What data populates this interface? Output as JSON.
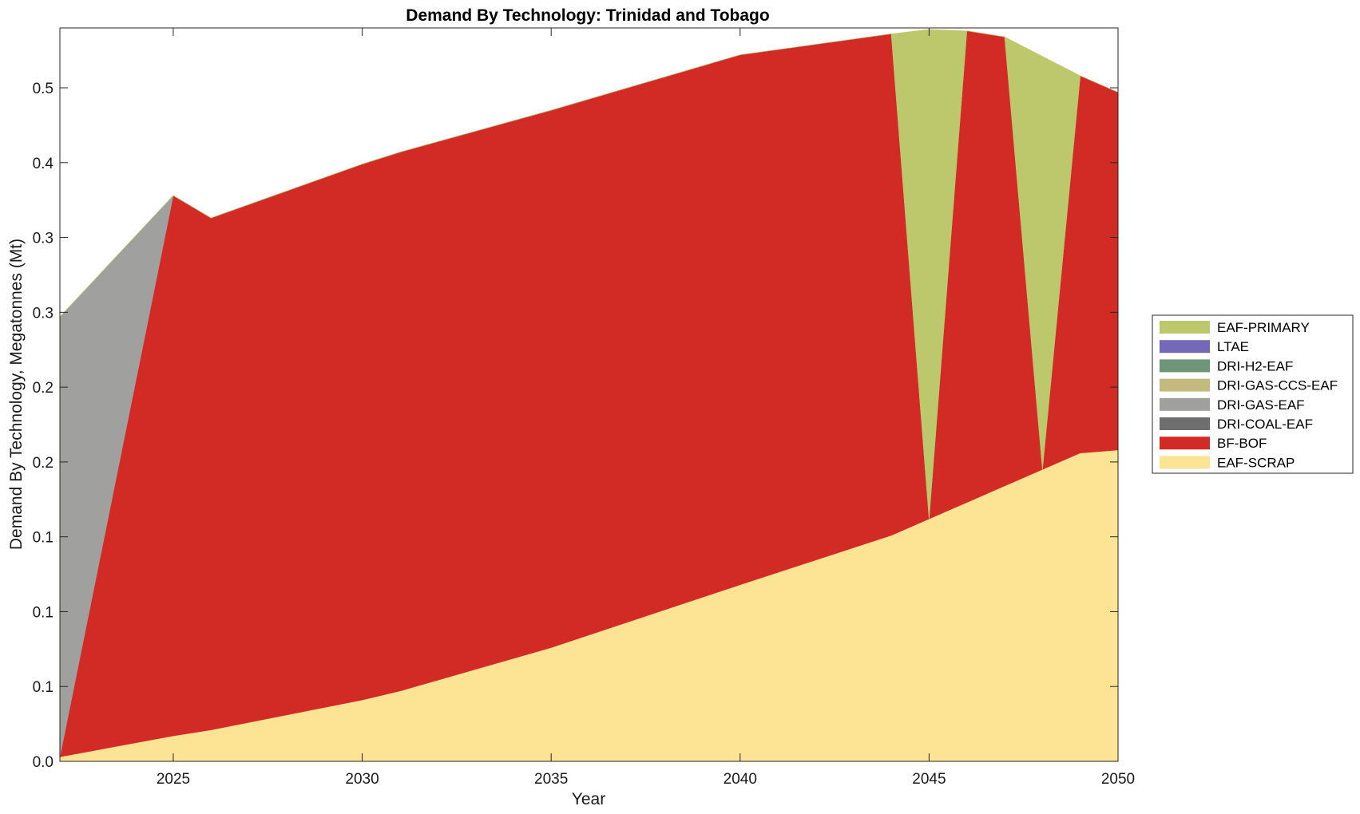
{
  "chart_data": {
    "type": "area",
    "stacked": true,
    "title": "Demand By Technology: Trinidad and Tobago",
    "xlabel": "Year",
    "ylabel": "Demand By Technology, Megatonnes (Mt)",
    "xlim": [
      2022,
      2050
    ],
    "ylim": [
      0,
      0.49
    ],
    "x_ticks": [
      2025,
      2030,
      2035,
      2040,
      2045,
      2050
    ],
    "y_ticks": [
      0,
      0.05,
      0.1,
      0.15,
      0.2,
      0.25,
      0.3,
      0.35,
      0.4,
      0.45
    ],
    "y_tick_labels": [
      "0.0",
      "0.1",
      "0.1",
      "0.1",
      "0.2",
      "0.2",
      "0.3",
      "0.3",
      "0.4",
      "0.5"
    ],
    "legend_position": "right",
    "x": [
      2022,
      2025,
      2026,
      2030,
      2031,
      2035,
      2040,
      2044,
      2045,
      2046,
      2047,
      2048,
      2049,
      2050
    ],
    "series": [
      {
        "name": "EAF-SCRAP",
        "color": "#fde394",
        "values": [
          0.003,
          0.017,
          0.021,
          0.041,
          0.047,
          0.076,
          0.118,
          0.151,
          0.162,
          0.173,
          0.184,
          0.195,
          0.206,
          0.208
        ]
      },
      {
        "name": "BF-BOF",
        "color": "#d22b26",
        "values": [
          0,
          0.361,
          0.342,
          0.358,
          0.36,
          0.359,
          0.354,
          0.335,
          0,
          0.315,
          0.3,
          0,
          0.252,
          0.239
        ]
      },
      {
        "name": "DRI-COAL-EAF",
        "color": "#6e6e6e",
        "values": [
          0,
          0,
          0,
          0,
          0,
          0,
          0,
          0,
          0,
          0,
          0,
          0,
          0,
          0
        ]
      },
      {
        "name": "DRI-GAS-EAF",
        "color": "#a0a09e",
        "values": [
          0.294,
          0,
          0,
          0,
          0,
          0,
          0,
          0,
          0,
          0,
          0,
          0,
          0,
          0
        ]
      },
      {
        "name": "DRI-GAS-CCS-EAF",
        "color": "#c4ba7d",
        "values": [
          0,
          0,
          0,
          0,
          0,
          0,
          0,
          0,
          0,
          0,
          0,
          0,
          0,
          0
        ]
      },
      {
        "name": "DRI-H2-EAF",
        "color": "#6f9478",
        "values": [
          0,
          0,
          0,
          0,
          0,
          0,
          0,
          0,
          0,
          0,
          0,
          0,
          0,
          0
        ]
      },
      {
        "name": "LTAE",
        "color": "#7468b8",
        "values": [
          0,
          0,
          0,
          0,
          0,
          0,
          0,
          0,
          0,
          0,
          0,
          0,
          0,
          0
        ]
      },
      {
        "name": "EAF-PRIMARY",
        "color": "#bdc76b",
        "values": [
          0,
          0,
          0,
          0,
          0,
          0,
          0,
          0,
          0.327,
          0,
          0,
          0.276,
          0,
          0
        ]
      }
    ],
    "legend_order": [
      "EAF-PRIMARY",
      "LTAE",
      "DRI-H2-EAF",
      "DRI-GAS-CCS-EAF",
      "DRI-GAS-EAF",
      "DRI-COAL-EAF",
      "BF-BOF",
      "EAF-SCRAP"
    ]
  }
}
